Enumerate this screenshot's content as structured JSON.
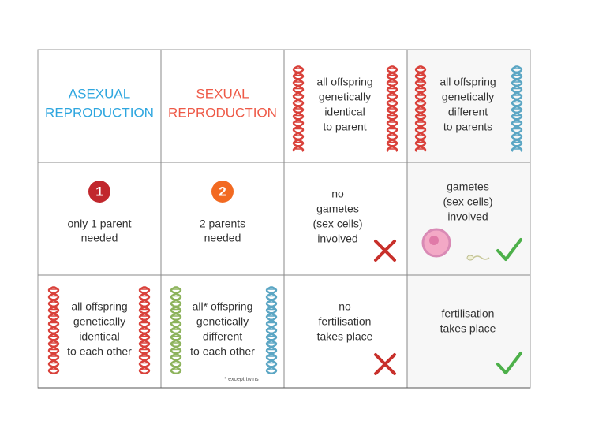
{
  "table": {
    "rows": [
      [
        {
          "lines": [
            "ASEXUAL",
            "REPRODUCTION"
          ]
        },
        {
          "lines": [
            "SEXUAL",
            "REPRODUCTION"
          ]
        },
        {
          "lines": [
            "all offspring",
            "genetically",
            "identical",
            "to parent"
          ]
        },
        {
          "lines": [
            "all offspring",
            "genetically",
            "different",
            "to parents"
          ]
        }
      ],
      [
        {
          "badge": "1",
          "lines": [
            "only 1 parent",
            "needed"
          ]
        },
        {
          "badge": "2",
          "lines": [
            "2 parents",
            "needed"
          ]
        },
        {
          "lines": [
            "no",
            "gametes",
            "(sex cells)",
            "involved"
          ]
        },
        {
          "lines": [
            "gametes",
            "(sex cells)",
            "involved"
          ]
        }
      ],
      [
        {
          "lines": [
            "all offspring",
            "genetically",
            "identical",
            "to each other"
          ]
        },
        {
          "lines": [
            "all* offspring",
            "genetically",
            "different",
            "to each other"
          ],
          "note": "* except twins"
        },
        {
          "lines": [
            "no",
            "fertilisation",
            "takes place"
          ]
        },
        {
          "lines": [
            "fertilisation",
            "takes place"
          ]
        }
      ]
    ]
  }
}
